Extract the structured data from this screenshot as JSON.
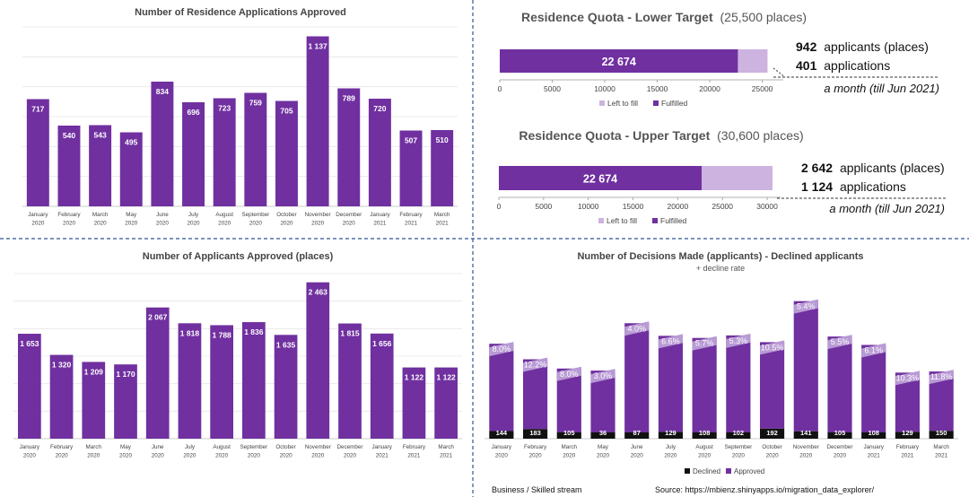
{
  "colors": {
    "fulfilled": "#7030a0",
    "left_to_fill": "#cdb3df",
    "declined": "#111111",
    "decline_rate_band": "#b89ad4",
    "divider": "#2e5597",
    "grid": "#e6e6e6"
  },
  "months": [
    "January 2020",
    "February 2020",
    "March 2020",
    "May 2020",
    "June 2020",
    "July 2020",
    "August 2020",
    "September 2020",
    "October 2020",
    "November 2020",
    "December 2020",
    "January 2021",
    "February 2021",
    "March 2021"
  ],
  "chart_data": [
    {
      "id": "residence-applications-approved",
      "type": "bar",
      "title": "Number of Residence Applications Approved",
      "categories": [
        "January 2020",
        "February 2020",
        "March 2020",
        "May 2020",
        "June 2020",
        "July 2020",
        "August 2020",
        "September 2020",
        "October 2020",
        "November 2020",
        "December 2020",
        "January 2021",
        "February 2021",
        "March 2021"
      ],
      "values": [
        717,
        540,
        543,
        495,
        834,
        696,
        723,
        759,
        705,
        1137,
        789,
        720,
        507,
        510
      ],
      "labels": [
        "717",
        "540",
        "543",
        "495",
        "834",
        "696",
        "723",
        "759",
        "705",
        "1 137",
        "789",
        "720",
        "507",
        "510"
      ],
      "ylim": [
        0,
        1200
      ],
      "grid": true
    },
    {
      "id": "quota-lower",
      "type": "bar",
      "orientation": "horizontal-stacked",
      "title": "Residence Quota - Lower Target",
      "title_extra": "(25,500 places)",
      "target": 25500,
      "fulfilled": 22674,
      "fulfilled_label": "22 674",
      "xticks": [
        "0",
        "5000",
        "10000",
        "15000",
        "20000",
        "25000"
      ],
      "xlim": [
        0,
        27000
      ],
      "legend": [
        "Left to fill",
        "Fulfilled"
      ],
      "annotation": {
        "applicants_value": "942",
        "applicants_text": "applicants (places)",
        "applications_value": "401",
        "applications_text": "applications",
        "period": "a month (till Jun 2021)"
      }
    },
    {
      "id": "quota-upper",
      "type": "bar",
      "orientation": "horizontal-stacked",
      "title": "Residence Quota - Upper Target",
      "title_extra": "(30,600 places)",
      "target": 30600,
      "fulfilled": 22674,
      "fulfilled_label": "22 674",
      "xticks": [
        "0",
        "5000",
        "10000",
        "15000",
        "20000",
        "25000",
        "30000"
      ],
      "xlim": [
        0,
        31500
      ],
      "legend": [
        "Left to fill",
        "Fulfilled"
      ],
      "annotation": {
        "applicants_value": "2 642",
        "applicants_text": "applicants (places)",
        "applications_value": "1 124",
        "applications_text": "applications",
        "period": "a month (till Jun 2021)"
      }
    },
    {
      "id": "applicants-approved-places",
      "type": "bar",
      "title": "Number of Applicants Approved (places)",
      "categories": [
        "January 2020",
        "February 2020",
        "March 2020",
        "May 2020",
        "June 2020",
        "July 2020",
        "August 2020",
        "September 2020",
        "October 2020",
        "November 2020",
        "December 2020",
        "January 2021",
        "February 2021",
        "March 2021"
      ],
      "values": [
        1653,
        1320,
        1209,
        1170,
        2067,
        1818,
        1788,
        1836,
        1635,
        2463,
        1815,
        1656,
        1122,
        1122
      ],
      "labels": [
        "1 653",
        "1 320",
        "1 209",
        "1 170",
        "2 067",
        "1 818",
        "1 788",
        "1 836",
        "1 635",
        "2 463",
        "1 815",
        "1 656",
        "1 122",
        "1 122"
      ],
      "ylim": [
        0,
        2600
      ],
      "grid": true
    },
    {
      "id": "decisions-made",
      "type": "bar",
      "orientation": "stacked",
      "title": "Number of Decisions Made (applicants) - Declined applicants",
      "subtitle": "+ decline rate",
      "categories": [
        "January 2020",
        "February 2020",
        "March 2020",
        "May 2020",
        "June 2020",
        "July 2020",
        "August 2020",
        "September 2020",
        "October 2020",
        "November 2020",
        "December 2020",
        "January 2021",
        "February 2021",
        "March 2021"
      ],
      "series": [
        {
          "name": "Declined",
          "values": [
            144,
            183,
            105,
            36,
            87,
            129,
            108,
            102,
            192,
            141,
            105,
            108,
            129,
            150
          ]
        },
        {
          "name": "Approved",
          "values": [
            1653,
            1320,
            1209,
            1170,
            2067,
            1818,
            1788,
            1836,
            1635,
            2463,
            1815,
            1656,
            1122,
            1122
          ]
        }
      ],
      "decline_rate": [
        "8.0%",
        "12.2%",
        "8.0%",
        "3.0%",
        "4.0%",
        "6.6%",
        "5.7%",
        "5.3%",
        "10.5%",
        "5.4%",
        "5.5%",
        "6.1%",
        "10.3%",
        "11.8%"
      ],
      "ylim": [
        0,
        2700
      ],
      "legend": [
        "Declined",
        "Approved"
      ]
    }
  ],
  "footer": {
    "stream": "Business / Skilled stream",
    "source": "Source: https://mbienz.shinyapps.io/migration_data_explorer/"
  }
}
